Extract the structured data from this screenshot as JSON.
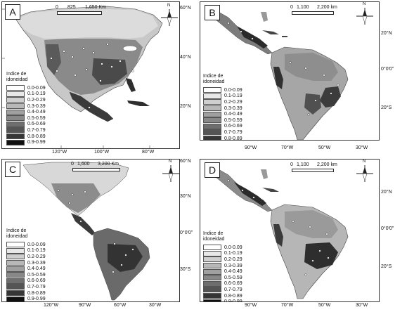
{
  "legend": {
    "title_line1": "Indice de",
    "title_line2": "idoneidad",
    "classes": [
      "0.0-0.09",
      "0.1-0.19",
      "0.2-0.29",
      "0.3-0.39",
      "0.4-0.49",
      "0.5-0.59",
      "0.6-0.69",
      "0.7-0.79",
      "0.8-0.89",
      "0.9-0.99"
    ],
    "colors": [
      "#ffffff",
      "#e8e8e8",
      "#cfcfcf",
      "#b8b8b8",
      "#a0a0a0",
      "#888888",
      "#6e6e6e",
      "#545454",
      "#363636",
      "#111111"
    ]
  },
  "panels": {
    "A": {
      "letter": "A",
      "scale": [
        "0",
        "825",
        "1,650 Km"
      ],
      "left_lats": [
        "60°N",
        "40°N",
        "20°N"
      ],
      "bottom_lons": [
        "120°W",
        "100°W",
        "80°W"
      ]
    },
    "B": {
      "letter": "B",
      "scale": [
        "0",
        "1,100",
        "2,200 km"
      ],
      "right_lats": [
        "20°N",
        "0°0'0\"",
        "20°S"
      ],
      "bottom_lons": [
        "90°W",
        "70°W",
        "50°W",
        "30°W"
      ]
    },
    "C": {
      "letter": "C",
      "scale": [
        "0",
        "1,600",
        "3,200 Km"
      ],
      "right_lats": [
        "60°N",
        "30°N",
        "0°0'0\"",
        "30°S"
      ],
      "bottom_lons": [
        "120°W",
        "90°W",
        "60°W",
        "30°W"
      ]
    },
    "D": {
      "letter": "D",
      "scale": [
        "0",
        "1,100",
        "2,200 km"
      ],
      "right_lats": [
        "20°N",
        "0°0'0\"",
        "20°S"
      ],
      "bottom_lons": [
        "90°W",
        "70°W",
        "50°W",
        "30°W"
      ]
    }
  },
  "north_label": "N"
}
